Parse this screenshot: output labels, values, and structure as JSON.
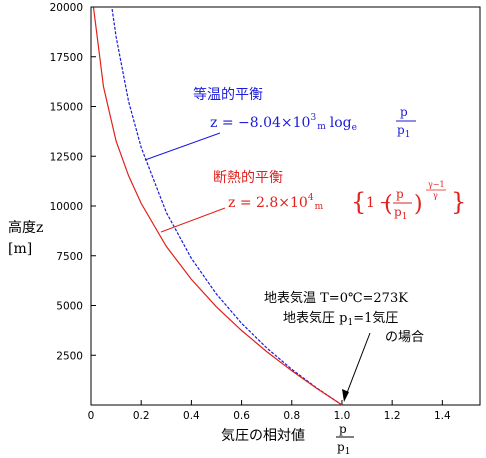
{
  "chart_data": {
    "type": "line",
    "xlabel": "気圧の相対値",
    "xlabel_frac_num": "p",
    "xlabel_frac_den": "p",
    "xlabel_frac_den_sub": "1",
    "ylabel_line1": "高度z",
    "ylabel_line2": "[m]",
    "xlim": [
      0,
      1.55
    ],
    "ylim": [
      0,
      20000
    ],
    "x_ticks": [
      "0",
      "0.2",
      "0.4",
      "0.6",
      "0.8",
      "1.0",
      "1.2",
      "1.4"
    ],
    "x_tick_values": [
      0,
      0.2,
      0.4,
      0.6,
      0.8,
      1.0,
      1.2,
      1.4
    ],
    "y_ticks": [
      "2500",
      "5000",
      "7500",
      "10000",
      "12500",
      "15000",
      "17500",
      "20000"
    ],
    "y_tick_values": [
      2500,
      5000,
      7500,
      10000,
      12500,
      15000,
      17500,
      20000
    ],
    "series": [
      {
        "name": "等温的平衡",
        "color": "#1a1adb",
        "style": "dashed",
        "formula": {
          "lhs": "z = −8.04×10",
          "exp": "3",
          "unit": "m",
          "log": "log",
          "log_base": "e",
          "frac_num": "p",
          "frac_den": "p",
          "frac_den_sub": "1"
        },
        "x": [
          1.0,
          0.9,
          0.8,
          0.7,
          0.6,
          0.5,
          0.4,
          0.3,
          0.2,
          0.15,
          0.1,
          0.083
        ],
        "y": [
          0,
          847,
          1794,
          2868,
          4107,
          5573,
          7367,
          9680,
          12940,
          15250,
          18510,
          20000
        ]
      },
      {
        "name": "断熱的平衡",
        "color": "#e0211c",
        "style": "solid",
        "formula": {
          "lhs": "z = 2.8×10",
          "exp": "4",
          "unit": "m",
          "one_minus": "1 −",
          "frac_num": "p",
          "frac_den": "p",
          "frac_den_sub": "1",
          "power": "γ−1",
          "power_den": "γ"
        },
        "x": [
          1.0,
          0.9,
          0.8,
          0.7,
          0.6,
          0.5,
          0.4,
          0.3,
          0.2,
          0.15,
          0.1,
          0.05,
          0.01
        ],
        "y": [
          0,
          830,
          1718,
          2683,
          3742,
          4932,
          6312,
          7970,
          10130,
          11520,
          13260,
          15990,
          19980
        ]
      }
    ],
    "annotation": {
      "line1": "地表気温 T=0℃=273K",
      "line2_pre": "地表気圧 p",
      "line2_sub": "1",
      "line2_post": "=1気圧",
      "line3": "の場合",
      "point_x": 1.0,
      "point_y": 0
    }
  }
}
